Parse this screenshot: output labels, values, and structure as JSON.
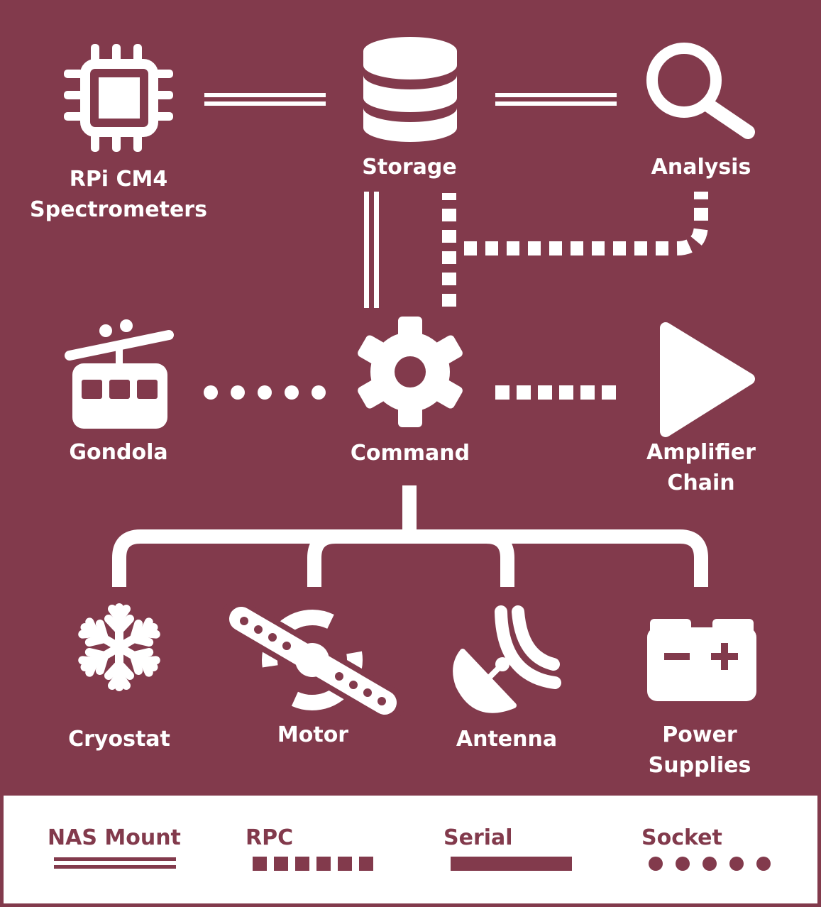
{
  "colors": {
    "background": "#823a4c",
    "foreground": "#ffffff",
    "legend_background": "#ffffff",
    "legend_text": "#823a4c"
  },
  "nodes": {
    "rpi": {
      "line1": "RPi CM4",
      "line2": "Spectrometers",
      "icon": "cpu-chip-icon"
    },
    "storage": {
      "label": "Storage",
      "icon": "database-icon"
    },
    "analysis": {
      "label": "Analysis",
      "icon": "magnifier-icon"
    },
    "gondola": {
      "label": "Gondola",
      "icon": "gondola-icon"
    },
    "command": {
      "label": "Command",
      "icon": "gear-icon"
    },
    "amplifier": {
      "line1": "Amplifier",
      "line2": "Chain",
      "icon": "play-triangle-icon"
    },
    "cryostat": {
      "label": "Cryostat",
      "icon": "snowflake-icon"
    },
    "motor": {
      "label": "Motor",
      "icon": "motor-icon"
    },
    "antenna": {
      "label": "Antenna",
      "icon": "satellite-dish-icon"
    },
    "power": {
      "line1": "Power",
      "line2": "Supplies",
      "icon": "battery-icon"
    }
  },
  "connections": [
    {
      "from": "RPi CM4 Spectrometers",
      "to": "Storage",
      "type": "NAS Mount"
    },
    {
      "from": "Storage",
      "to": "Analysis",
      "type": "NAS Mount"
    },
    {
      "from": "Storage",
      "to": "Command",
      "type": "NAS Mount"
    },
    {
      "from": "Analysis",
      "to": "Command",
      "type": "RPC"
    },
    {
      "from": "Gondola",
      "to": "Command",
      "type": "Socket"
    },
    {
      "from": "Command",
      "to": "Amplifier Chain",
      "type": "RPC"
    },
    {
      "from": "Command",
      "to": "Cryostat",
      "type": "Serial"
    },
    {
      "from": "Command",
      "to": "Motor",
      "type": "Serial"
    },
    {
      "from": "Command",
      "to": "Antenna",
      "type": "Serial"
    },
    {
      "from": "Command",
      "to": "Power Supplies",
      "type": "Serial"
    }
  ],
  "legend": {
    "nas": "NAS Mount",
    "rpc": "RPC",
    "serial": "Serial",
    "socket": "Socket"
  }
}
